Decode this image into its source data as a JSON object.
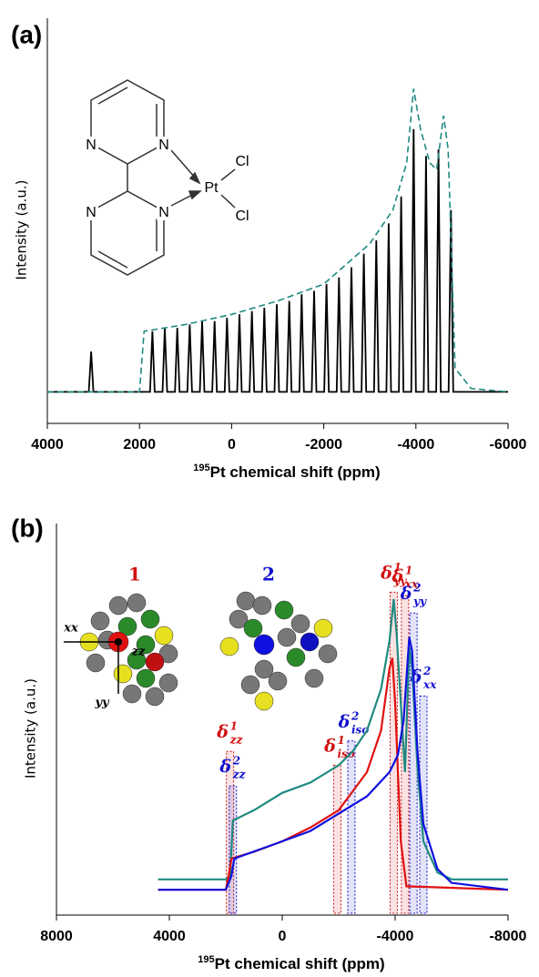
{
  "chart_data": [
    {
      "type": "line",
      "panel_label": "(a)",
      "ylabel": "Intensity (a.u.)",
      "xlabel_sup": "195",
      "xlabel": "Pt chemical shift (ppm)",
      "xlim": [
        4000,
        -6000
      ],
      "xticks": [
        4000,
        2000,
        0,
        -2000,
        -4000,
        -6000
      ],
      "ylim": [
        0,
        100
      ],
      "structure_labels": [
        "N",
        "N",
        "N",
        "N",
        "Pt",
        "Cl",
        "Cl"
      ],
      "series": [
        {
          "color": "#000000",
          "dashed": false,
          "x": [
            4000,
            3100,
            3050,
            3000,
            1770,
            1720,
            1670,
            1500,
            1450,
            1400,
            1230,
            1180,
            1130,
            960,
            910,
            860,
            690,
            640,
            590,
            420,
            370,
            320,
            150,
            100,
            50,
            -120,
            -170,
            -220,
            -390,
            -440,
            -490,
            -660,
            -710,
            -760,
            -930,
            -980,
            -1030,
            -1200,
            -1250,
            -1300,
            -1470,
            -1520,
            -1570,
            -1740,
            -1790,
            -1840,
            -2010,
            -2060,
            -2110,
            -2280,
            -2330,
            -2380,
            -2550,
            -2600,
            -2650,
            -2820,
            -2870,
            -2920,
            -3090,
            -3140,
            -3190,
            -3360,
            -3410,
            -3460,
            -3630,
            -3680,
            -3730,
            -3900,
            -3950,
            -4000,
            -4170,
            -4220,
            -4270,
            -4440,
            -4490,
            -4540,
            -4710,
            -4760,
            -4810,
            -6000
          ],
          "values": [
            8,
            8,
            20,
            8,
            8,
            26,
            8,
            8,
            27,
            8,
            8,
            27,
            8,
            8,
            28,
            8,
            8,
            29,
            8,
            8,
            29,
            8,
            8,
            30,
            8,
            8,
            31,
            8,
            8,
            32,
            8,
            8,
            33,
            8,
            8,
            34,
            8,
            8,
            35,
            8,
            8,
            37,
            8,
            8,
            38,
            8,
            8,
            40,
            8,
            8,
            42,
            8,
            8,
            45,
            8,
            8,
            49,
            8,
            8,
            53,
            8,
            8,
            58,
            8,
            8,
            66,
            8,
            8,
            86,
            8,
            8,
            78,
            8,
            8,
            80,
            8,
            8,
            62,
            8,
            8
          ]
        },
        {
          "color": "#1f8a80",
          "dashed": true,
          "x": [
            4000,
            2000,
            1900,
            1000,
            0,
            -1000,
            -2000,
            -3000,
            -3500,
            -3800,
            -3950,
            -4100,
            -4300,
            -4450,
            -4600,
            -4700,
            -4850,
            -5200,
            -6000
          ],
          "values": [
            8,
            8,
            26,
            28,
            31,
            35,
            40,
            52,
            62,
            76,
            98,
            86,
            76,
            74,
            90,
            80,
            15,
            9,
            8
          ]
        }
      ]
    },
    {
      "type": "line",
      "panel_label": "(b)",
      "ylabel": "Intensity (a.u.)",
      "xlabel_sup": "195",
      "xlabel": "Pt chemical shift (ppm)",
      "xlim": [
        8000,
        -8000
      ],
      "xticks": [
        8000,
        4000,
        0,
        -4000,
        -8000
      ],
      "ylim": [
        0,
        100
      ],
      "molecule_labels": [
        {
          "text": "1",
          "color": "#d01010"
        },
        {
          "text": "2",
          "color": "#1010d0"
        }
      ],
      "axis_labels": [
        "xx",
        "yy",
        "zz"
      ],
      "series": [
        {
          "color": "#1f8a80",
          "dashed": false,
          "x": [
            4400,
            2000,
            1850,
            1750,
            1000,
            0,
            -1000,
            -2000,
            -2500,
            -3000,
            -3500,
            -3800,
            -3950,
            -4050,
            -4200,
            -4350,
            -4500,
            -4600,
            -4800,
            -5000,
            -5500,
            -6000,
            -8000
          ],
          "values": [
            9,
            9,
            10,
            26,
            29,
            34,
            37,
            42,
            46,
            52,
            64,
            78,
            90,
            80,
            60,
            40,
            76,
            70,
            40,
            20,
            11,
            9,
            9
          ]
        },
        {
          "color": "#e01010",
          "dashed": false,
          "x": [
            4400,
            2000,
            1900,
            1800,
            1000,
            0,
            -1000,
            -2000,
            -3000,
            -3500,
            -3800,
            -3900,
            -4000,
            -4200,
            -4400,
            -8000
          ],
          "values": [
            6,
            6,
            10,
            15,
            17,
            20,
            24,
            29,
            40,
            52,
            70,
            73,
            60,
            20,
            7,
            6
          ]
        },
        {
          "color": "#1010e0",
          "dashed": false,
          "x": [
            4400,
            2000,
            1800,
            1700,
            0,
            -1000,
            -2000,
            -3000,
            -3800,
            -4100,
            -4300,
            -4500,
            -4600,
            -4800,
            -5000,
            -5500,
            -6000,
            -8000
          ],
          "values": [
            6,
            6,
            10,
            15,
            20,
            23,
            28,
            33,
            40,
            45,
            55,
            79,
            75,
            45,
            25,
            12,
            8,
            6
          ]
        }
      ],
      "annotations": [
        {
          "symbol": "δ",
          "sub": "zz",
          "sup": "1",
          "x": 1850,
          "value": 46,
          "color": "#d01010"
        },
        {
          "symbol": "δ",
          "sub": "zz",
          "sup": "2",
          "x": 1750,
          "value": 36,
          "color": "#1010d0"
        },
        {
          "symbol": "δ",
          "sub": "iso",
          "sup": "1",
          "x": -1950,
          "value": 42,
          "color": "#d01010"
        },
        {
          "symbol": "δ",
          "sub": "iso",
          "sup": "2",
          "x": -2450,
          "value": 49,
          "color": "#1010d0"
        },
        {
          "symbol": "δ",
          "sub": "yy",
          "sup": "1",
          "x": -3950,
          "value": 92,
          "color": "#d01010"
        },
        {
          "symbol": "δ",
          "sub": "xx",
          "sup": "1",
          "x": -4350,
          "value": 91,
          "color": "#d01010"
        },
        {
          "symbol": "δ",
          "sub": "yy",
          "sup": "2",
          "x": -4650,
          "value": 86,
          "color": "#1010d0"
        },
        {
          "symbol": "δ",
          "sub": "xx",
          "sup": "2",
          "x": -5000,
          "value": 62,
          "color": "#1010d0"
        }
      ]
    }
  ]
}
